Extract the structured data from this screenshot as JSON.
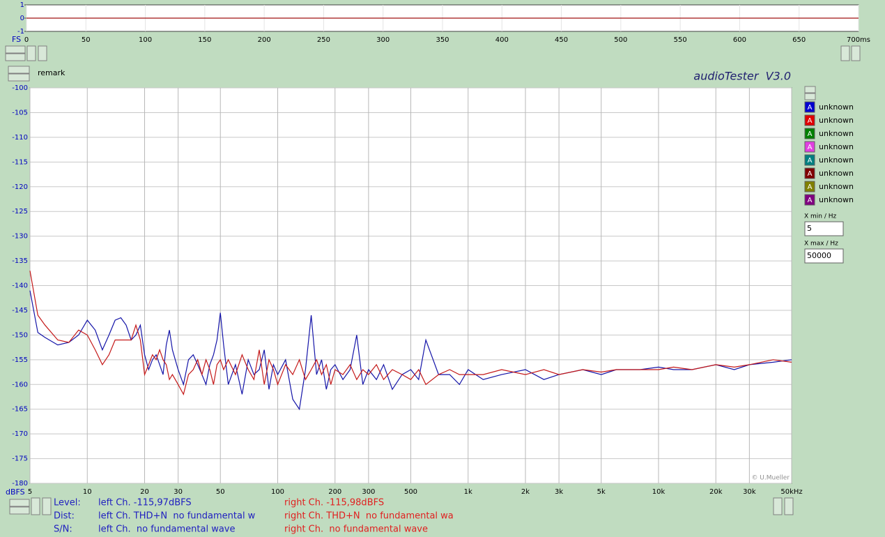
{
  "chart_data": [
    {
      "type": "line",
      "axis_label": "FS",
      "x": [
        0,
        700
      ],
      "series": [
        {
          "color": "#a01010",
          "values": [
            0,
            0
          ]
        }
      ],
      "xlim": [
        0,
        700
      ],
      "xticks": [
        0,
        50,
        100,
        150,
        200,
        250,
        300,
        350,
        400,
        450,
        500,
        550,
        600,
        650,
        {
          "value": 700,
          "label": "700ms"
        }
      ],
      "ylim": [
        -1,
        1
      ],
      "yticks": [
        1,
        0,
        -1
      ]
    },
    {
      "type": "line",
      "title": "audioTester  V3.0",
      "y_label": "dBFS",
      "annotation": "© U.Mueller",
      "log_x": true,
      "grid": true,
      "x": [
        5,
        5.5,
        6,
        7,
        8,
        9,
        10,
        11,
        12,
        13,
        14,
        15,
        16,
        17,
        18,
        19,
        20,
        21,
        22,
        23,
        24,
        25,
        26,
        27,
        28,
        30,
        32,
        34,
        36,
        38,
        40,
        42,
        44,
        46,
        48,
        50,
        52,
        55,
        60,
        65,
        70,
        75,
        80,
        85,
        90,
        95,
        100,
        110,
        120,
        130,
        140,
        150,
        160,
        170,
        180,
        190,
        200,
        220,
        240,
        260,
        280,
        300,
        330,
        360,
        400,
        450,
        500,
        550,
        600,
        700,
        800,
        900,
        1000,
        1200,
        1500,
        2000,
        2500,
        3000,
        4000,
        5000,
        6000,
        8000,
        10000,
        12000,
        15000,
        20000,
        25000,
        30000,
        40000,
        50000
      ],
      "series": [
        {
          "color": "#1414a8",
          "values": [
            -141,
            -149.5,
            -150.5,
            -152,
            -151.5,
            -150,
            -147,
            -149,
            -153,
            -150,
            -147,
            -146.5,
            -148,
            -151,
            -150,
            -148,
            -154,
            -157,
            -155,
            -154,
            -156,
            -158,
            -152,
            -149,
            -153,
            -157,
            -160,
            -155,
            -154,
            -156,
            -158,
            -160,
            -156,
            -154,
            -151,
            -145.5,
            -152,
            -160,
            -156,
            -162,
            -155,
            -158,
            -157,
            -153,
            -161,
            -156,
            -158,
            -155,
            -163,
            -165,
            -157,
            -146,
            -158,
            -155,
            -161,
            -157,
            -156,
            -159,
            -157,
            -150,
            -160,
            -157,
            -159,
            -156,
            -161,
            -158,
            -157,
            -159,
            -151,
            -158,
            -158,
            -160,
            -157,
            -159,
            -158,
            -157,
            -159,
            -158,
            -157,
            -158,
            -157,
            -157,
            -156.5,
            -157,
            -157,
            -156,
            -157,
            -156,
            -155.5,
            -155
          ]
        },
        {
          "color": "#c41818",
          "values": [
            -137,
            -146,
            -148,
            -151,
            -151.5,
            -149,
            -150,
            -153,
            -156,
            -154,
            -151,
            -151,
            -151,
            -151,
            -148,
            -151,
            -158,
            -156,
            -154,
            -155,
            -153,
            -155,
            -156,
            -159,
            -158,
            -160,
            -162,
            -158,
            -157,
            -155,
            -158,
            -155,
            -157,
            -160,
            -156,
            -155,
            -157,
            -155,
            -158,
            -154,
            -157,
            -159,
            -153,
            -160,
            -155,
            -157,
            -160,
            -156,
            -158,
            -155,
            -159,
            -157,
            -155,
            -158,
            -156,
            -160,
            -157,
            -158,
            -156,
            -159,
            -157,
            -158,
            -156,
            -159,
            -157,
            -158,
            -159,
            -157,
            -160,
            -158,
            -157,
            -158,
            -158,
            -158,
            -157,
            -158,
            -157,
            -158,
            -157,
            -157.5,
            -157,
            -157,
            -157,
            -156.5,
            -157,
            -156,
            -156.5,
            -156,
            -155,
            -155.5
          ]
        }
      ],
      "xlim": [
        5,
        50000
      ],
      "xticks": [
        5,
        10,
        20,
        30,
        50,
        100,
        200,
        300,
        500,
        {
          "value": 1000,
          "label": "1k"
        },
        {
          "value": 2000,
          "label": "2k"
        },
        {
          "value": 3000,
          "label": "3k"
        },
        {
          "value": 5000,
          "label": "5k"
        },
        {
          "value": 10000,
          "label": "10k"
        },
        {
          "value": 20000,
          "label": "20k"
        },
        {
          "value": 30000,
          "label": "30k"
        },
        {
          "value": 50000,
          "label": "50kHz"
        }
      ],
      "ylim": [
        -180,
        -100
      ],
      "yticks": [
        -100,
        -105,
        -110,
        -115,
        -120,
        -125,
        -130,
        -135,
        -140,
        -145,
        -150,
        -155,
        -160,
        -165,
        -170,
        -175,
        -180
      ]
    }
  ],
  "ui": {
    "remark": "remark",
    "legend": [
      {
        "badge": "A",
        "label": "unknown",
        "color": "#0000d0"
      },
      {
        "badge": "A",
        "label": "unknown",
        "color": "#e00000"
      },
      {
        "badge": "A",
        "label": "unknown",
        "color": "#008000"
      },
      {
        "badge": "A",
        "label": "unknown",
        "color": "#e040e0"
      },
      {
        "badge": "A",
        "label": "unknown",
        "color": "#008080"
      },
      {
        "badge": "A",
        "label": "unknown",
        "color": "#800000"
      },
      {
        "badge": "A",
        "label": "unknown",
        "color": "#808000"
      },
      {
        "badge": "A",
        "label": "unknown",
        "color": "#800080"
      }
    ],
    "xmin_label": "X min / Hz",
    "xmin_value": "5",
    "xmax_label": "X max / Hz",
    "xmax_value": "50000",
    "status": [
      {
        "name": "Level:",
        "left": "left Ch. -115,97dBFS",
        "right": "right Ch. -115,98dBFS"
      },
      {
        "name": "Dist:",
        "left": "left Ch. THD+N  no fundamental w",
        "right": "right Ch. THD+N  no fundamental wa"
      },
      {
        "name": "S/N:",
        "left": "left Ch.  no fundamental wave",
        "right": "right Ch.  no fundamental wave"
      }
    ]
  }
}
